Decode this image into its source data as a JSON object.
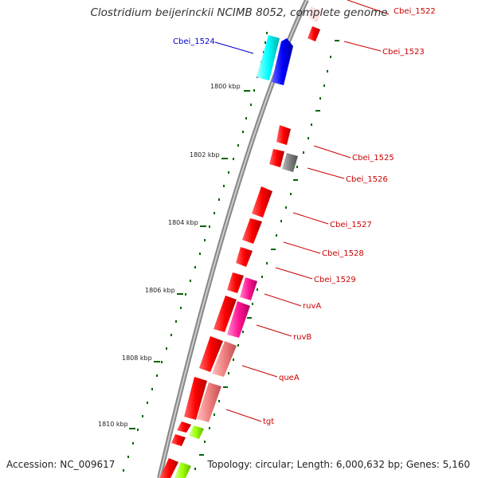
{
  "title": "Clostridium beijerinckii NCIMB 8052, complete genome",
  "footer": {
    "accession": "Accession: NC_009617",
    "summary": "Topology: circular; Length: 6,000,632 bp; Genes: 5,160"
  },
  "scale_labels": [
    "1800 kbp",
    "1802 kbp",
    "1804 kbp",
    "1806 kbp",
    "1808 kbp",
    "1810 kbp"
  ],
  "gene_labels": [
    "Cbei_1522",
    "Cbei_1523",
    "Cbei_1524",
    "Cbei_1525",
    "Cbei_1526",
    "Cbei_1527",
    "Cbei_1528",
    "Cbei_1529",
    "ruvA",
    "ruvB",
    "queA",
    "tgt"
  ],
  "colors": {
    "gene_red": "#ff0000",
    "blue_label": "#0000cc",
    "red_label": "#cc0000",
    "cyan": "#00ffff",
    "blue": "#0000ff",
    "magenta": "#ff1493",
    "pink": "#f08080",
    "grey": "#808080",
    "green": "#99ff00",
    "tick_green": "#006600"
  }
}
